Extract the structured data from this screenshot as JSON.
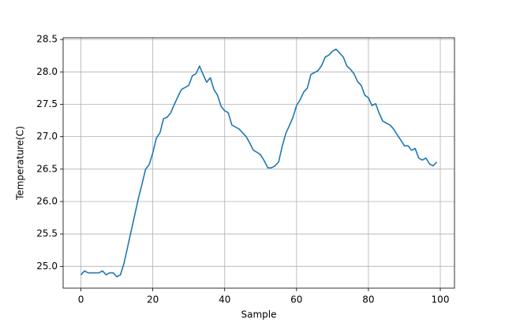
{
  "chart_data": {
    "type": "line",
    "xlabel": "Sample",
    "ylabel": "Temperature(C)",
    "x": [
      0,
      1,
      2,
      3,
      4,
      5,
      6,
      7,
      8,
      9,
      10,
      11,
      12,
      13,
      14,
      15,
      16,
      17,
      18,
      19,
      20,
      21,
      22,
      23,
      24,
      25,
      26,
      27,
      28,
      29,
      30,
      31,
      32,
      33,
      34,
      35,
      36,
      37,
      38,
      39,
      40,
      41,
      42,
      43,
      44,
      45,
      46,
      47,
      48,
      49,
      50,
      51,
      52,
      53,
      54,
      55,
      56,
      57,
      58,
      59,
      60,
      61,
      62,
      63,
      64,
      65,
      66,
      67,
      68,
      69,
      70,
      71,
      72,
      73,
      74,
      75,
      76,
      77,
      78,
      79,
      80,
      81,
      82,
      83,
      84,
      85,
      86,
      87,
      88,
      89,
      90,
      91,
      92,
      93,
      94,
      95,
      96,
      97,
      98,
      99
    ],
    "series": [
      {
        "color": "#1f77b4",
        "values": [
          24.87,
          24.93,
          24.9,
          24.9,
          24.9,
          24.9,
          24.93,
          24.87,
          24.9,
          24.9,
          24.84,
          24.87,
          25.05,
          25.3,
          25.55,
          25.8,
          26.05,
          26.27,
          26.5,
          26.57,
          26.75,
          26.98,
          27.06,
          27.28,
          27.3,
          27.37,
          27.5,
          27.62,
          27.73,
          27.76,
          27.79,
          27.94,
          27.97,
          28.09,
          27.96,
          27.84,
          27.91,
          27.73,
          27.64,
          27.47,
          27.4,
          27.37,
          27.18,
          27.15,
          27.12,
          27.06,
          27.0,
          26.9,
          26.79,
          26.76,
          26.72,
          26.63,
          26.52,
          26.52,
          26.55,
          26.61,
          26.85,
          27.05,
          27.17,
          27.3,
          27.48,
          27.57,
          27.69,
          27.75,
          27.96,
          27.99,
          28.02,
          28.1,
          28.23,
          28.26,
          28.32,
          28.35,
          28.29,
          28.23,
          28.09,
          28.04,
          27.97,
          27.85,
          27.79,
          27.64,
          27.6,
          27.48,
          27.51,
          27.36,
          27.24,
          27.21,
          27.18,
          27.12,
          27.03,
          26.95,
          26.86,
          26.86,
          26.79,
          26.82,
          26.67,
          26.64,
          26.67,
          26.58,
          26.55,
          26.61
        ]
      }
    ],
    "xlim": [
      -4.95,
      103.95
    ],
    "ylim": [
      24.664,
      28.526
    ],
    "xticks": [
      0,
      20,
      40,
      60,
      80,
      100
    ],
    "yticks": [
      {
        "value": 25,
        "label": "25.0"
      },
      25.5,
      {
        "value": 26,
        "label": "26.0"
      },
      26.5,
      {
        "value": 27,
        "label": "27.0"
      },
      27.5,
      {
        "value": 28,
        "label": "28.0"
      },
      28.5
    ],
    "grid": true
  }
}
